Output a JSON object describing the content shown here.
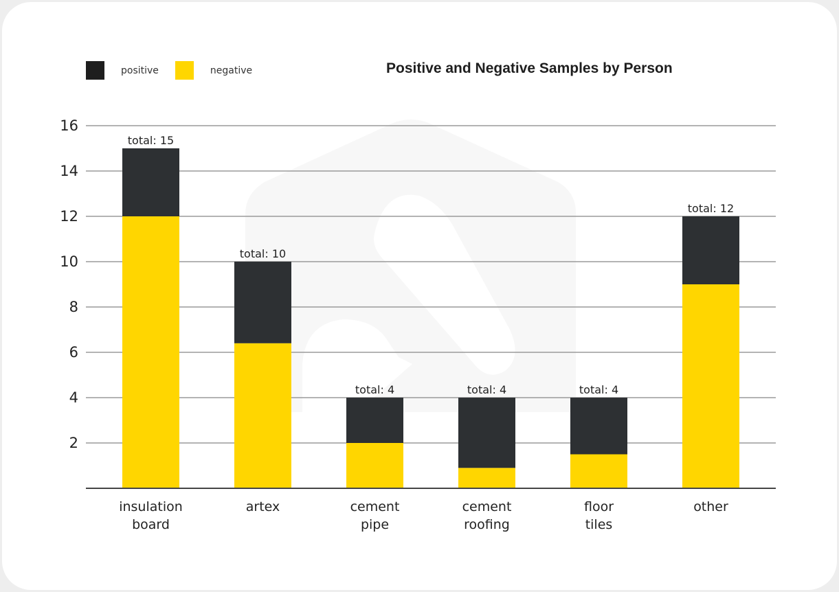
{
  "colors": {
    "positive": "#2d3033",
    "negative": "#ffd600",
    "legend_positive": "#1e1e1e",
    "grid": "#9a9a9a",
    "baseline": "#444444",
    "watermark": "#f7f7f7"
  },
  "legend": {
    "items": [
      {
        "label": "positive",
        "key": "positive"
      },
      {
        "label": "negative",
        "key": "negative"
      }
    ]
  },
  "chart_data": {
    "type": "bar",
    "stacked": true,
    "title": "Positive and Negative Samples by Person",
    "xlabel": "",
    "ylabel": "",
    "ylim": [
      0,
      16
    ],
    "yticks": [
      2,
      4,
      6,
      8,
      10,
      12,
      14,
      16
    ],
    "grid": true,
    "legend_position": "top-left",
    "categories": [
      [
        "insulation",
        "board"
      ],
      [
        "artex"
      ],
      [
        "cement",
        "pipe"
      ],
      [
        "cement",
        "roofing"
      ],
      [
        "floor",
        "tiles"
      ],
      [
        "other"
      ]
    ],
    "series": [
      {
        "name": "negative",
        "values": [
          12,
          6.4,
          2,
          0.9,
          1.5,
          9
        ]
      },
      {
        "name": "positive",
        "values": [
          3,
          3.6,
          2,
          3.1,
          2.5,
          3
        ]
      }
    ],
    "totals": [
      15,
      10,
      4,
      4,
      4,
      12
    ],
    "total_label_prefix": "total: "
  }
}
